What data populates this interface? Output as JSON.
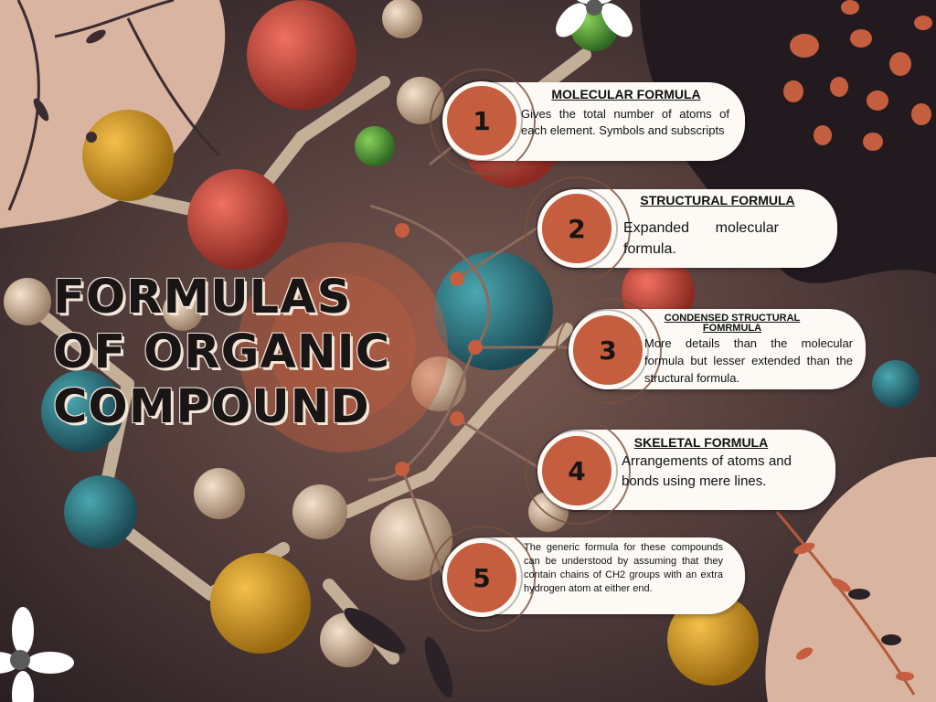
{
  "title": {
    "lines": [
      "FORMULAS",
      "OF ORGANIC",
      "COMPOUND"
    ]
  },
  "items": [
    {
      "number": "1",
      "heading": "MOLECULAR FORMULA",
      "text": "Gives the total number of atoms of each element. Symbols and subscripts"
    },
    {
      "number": "2",
      "heading": "STRUCTURAL FORMULA",
      "text": "Expanded molecular formula."
    },
    {
      "number": "3",
      "heading": "CONDENSED STRUCTURAL FOMRMULA",
      "text": "More details than the molecular formula but lesser extended than the structural formula."
    },
    {
      "number": "4",
      "heading": "SKELETAL FORMULA",
      "text": "Arrangements of atoms and bonds using mere lines."
    },
    {
      "number": "5",
      "heading": "",
      "text": "The generic formula for these compounds can be understood by assuming that they contain chains of CH2 groups with an extra hydrogen atom at either end."
    }
  ],
  "colors": {
    "accent": "#c55e3e",
    "card": "#fdfaf6",
    "blush": "#d9b4a0",
    "dark": "#231a1f"
  }
}
